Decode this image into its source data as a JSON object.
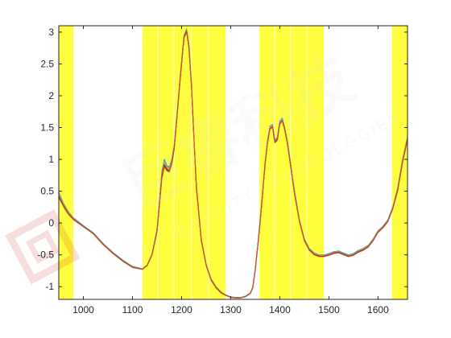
{
  "chart_data": {
    "type": "line",
    "title": "",
    "xlabel": "",
    "ylabel": "",
    "xlim": [
      950,
      1660
    ],
    "ylim": [
      -1.2,
      3.1
    ],
    "grid": false,
    "legend": "none",
    "x_ticks": [
      1000,
      1100,
      1200,
      1300,
      1400,
      1500,
      1600
    ],
    "y_ticks": [
      -1,
      -0.5,
      0,
      0.5,
      1,
      1.5,
      2,
      2.5,
      3
    ],
    "x_tick_labels": [
      "1000",
      "1100",
      "1200",
      "1300",
      "1400",
      "1500",
      "1600"
    ],
    "y_tick_labels": [
      "-1",
      "-0.5",
      "0",
      "0.5",
      "1",
      "1.5",
      "2",
      "2.5",
      "3"
    ],
    "highlight_color": "#ffff40",
    "highlight_bands": [
      [
        950,
        980
      ],
      [
        1120,
        1152
      ],
      [
        1152,
        1185
      ],
      [
        1185,
        1220
      ],
      [
        1220,
        1255
      ],
      [
        1255,
        1290
      ],
      [
        1358,
        1390
      ],
      [
        1390,
        1422
      ],
      [
        1422,
        1455
      ],
      [
        1455,
        1490
      ],
      [
        1628,
        1660
      ]
    ],
    "series_colors": [
      "#0072bd",
      "#4dbeee",
      "#77ac30",
      "#edb120",
      "#7e2f8e",
      "#a2142f",
      "#d95319"
    ],
    "x": [
      950,
      960,
      970,
      980,
      1000,
      1020,
      1040,
      1060,
      1080,
      1100,
      1120,
      1130,
      1140,
      1150,
      1155,
      1160,
      1165,
      1170,
      1175,
      1180,
      1185,
      1190,
      1195,
      1200,
      1205,
      1210,
      1215,
      1220,
      1225,
      1230,
      1240,
      1250,
      1260,
      1270,
      1280,
      1290,
      1300,
      1310,
      1320,
      1330,
      1340,
      1345,
      1350,
      1355,
      1360,
      1365,
      1370,
      1375,
      1380,
      1385,
      1390,
      1395,
      1400,
      1405,
      1410,
      1415,
      1420,
      1430,
      1440,
      1450,
      1460,
      1470,
      1480,
      1490,
      1500,
      1510,
      1520,
      1530,
      1540,
      1550,
      1560,
      1570,
      1580,
      1590,
      1600,
      1610,
      1620,
      1630,
      1640,
      1650,
      1660
    ],
    "series": [
      {
        "values": [
          0.48,
          0.3,
          0.17,
          0.08,
          -0.04,
          -0.15,
          -0.32,
          -0.46,
          -0.58,
          -0.68,
          -0.72,
          -0.66,
          -0.48,
          -0.1,
          0.35,
          0.82,
          1.0,
          0.9,
          0.88,
          1.0,
          1.22,
          1.65,
          2.1,
          2.55,
          2.95,
          3.05,
          2.8,
          2.2,
          1.4,
          0.6,
          -0.25,
          -0.65,
          -0.88,
          -1.0,
          -1.08,
          -1.13,
          -1.16,
          -1.17,
          -1.17,
          -1.15,
          -1.1,
          -1.0,
          -0.72,
          -0.35,
          0.05,
          0.5,
          0.95,
          1.3,
          1.52,
          1.55,
          1.3,
          1.35,
          1.6,
          1.65,
          1.5,
          1.3,
          1.05,
          0.5,
          0.05,
          -0.25,
          -0.4,
          -0.47,
          -0.5,
          -0.5,
          -0.48,
          -0.45,
          -0.44,
          -0.47,
          -0.5,
          -0.48,
          -0.43,
          -0.4,
          -0.35,
          -0.25,
          -0.12,
          -0.05,
          0.05,
          0.25,
          0.55,
          1.0,
          1.35
        ]
      },
      {
        "values": [
          0.4,
          0.25,
          0.13,
          0.05,
          -0.06,
          -0.17,
          -0.34,
          -0.48,
          -0.6,
          -0.7,
          -0.73,
          -0.67,
          -0.5,
          -0.14,
          0.28,
          0.7,
          0.88,
          0.82,
          0.8,
          0.92,
          1.15,
          1.6,
          2.05,
          2.5,
          2.9,
          3.0,
          2.75,
          2.15,
          1.35,
          0.55,
          -0.28,
          -0.67,
          -0.9,
          -1.02,
          -1.1,
          -1.14,
          -1.17,
          -1.18,
          -1.18,
          -1.16,
          -1.11,
          -1.02,
          -0.75,
          -0.38,
          0.0,
          0.45,
          0.9,
          1.25,
          1.47,
          1.5,
          1.26,
          1.3,
          1.55,
          1.6,
          1.46,
          1.26,
          1.0,
          0.45,
          0.02,
          -0.28,
          -0.43,
          -0.5,
          -0.53,
          -0.53,
          -0.51,
          -0.48,
          -0.47,
          -0.5,
          -0.53,
          -0.51,
          -0.46,
          -0.43,
          -0.38,
          -0.28,
          -0.15,
          -0.08,
          0.02,
          0.22,
          0.5,
          0.95,
          1.3
        ]
      }
    ]
  },
  "watermark": {
    "brand_cn": "巨睿科技",
    "brand_en": "MAGNITY TECHNOLOGIES"
  }
}
